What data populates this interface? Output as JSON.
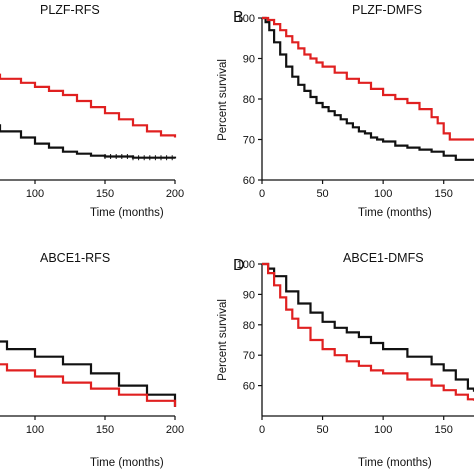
{
  "colors": {
    "black": "#111111",
    "red": "#e02020"
  },
  "chart_data": [
    {
      "panel": "A",
      "letter": "",
      "type": "line",
      "title": "PLZF-RFS",
      "xlabel": "Time (months)",
      "ylabel": "",
      "xticks": [
        100,
        150,
        200
      ],
      "yticks": [],
      "xlim": [
        0,
        200
      ],
      "ylim": [
        60,
        100
      ],
      "series": [
        {
          "color": "#111111",
          "censored_tail": true,
          "points": [
            [
              0,
              82
            ],
            [
              15,
              80
            ],
            [
              30,
              77
            ],
            [
              45,
              75
            ],
            [
              60,
              73.5
            ],
            [
              75,
              72
            ],
            [
              90,
              70.5
            ],
            [
              100,
              69
            ],
            [
              110,
              68
            ],
            [
              120,
              67
            ],
            [
              130,
              66.5
            ],
            [
              140,
              66
            ],
            [
              150,
              65.8
            ],
            [
              170,
              65.5
            ],
            [
              200,
              65.3
            ]
          ]
        },
        {
          "color": "#e02020",
          "censored_tail": false,
          "points": [
            [
              0,
              92
            ],
            [
              15,
              90
            ],
            [
              30,
              88.5
            ],
            [
              45,
              87
            ],
            [
              60,
              86
            ],
            [
              75,
              85
            ],
            [
              90,
              84
            ],
            [
              100,
              83
            ],
            [
              110,
              82
            ],
            [
              120,
              81
            ],
            [
              130,
              79.5
            ],
            [
              140,
              78
            ],
            [
              150,
              76.5
            ],
            [
              160,
              75
            ],
            [
              170,
              73.5
            ],
            [
              180,
              72
            ],
            [
              190,
              71
            ],
            [
              200,
              70.5
            ]
          ]
        }
      ]
    },
    {
      "panel": "B",
      "letter": "B",
      "type": "line",
      "title": "PLZF-DMFS",
      "xlabel": "Time (months)",
      "ylabel": "Percent survival",
      "xticks": [
        0,
        50,
        100,
        150
      ],
      "yticks": [
        60,
        70,
        80,
        90,
        100
      ],
      "xlim": [
        0,
        175
      ],
      "ylim": [
        60,
        100
      ],
      "series": [
        {
          "color": "#111111",
          "censored_tail": false,
          "points": [
            [
              0,
              100
            ],
            [
              3,
              99
            ],
            [
              6,
              97
            ],
            [
              10,
              94
            ],
            [
              15,
              91
            ],
            [
              20,
              88
            ],
            [
              25,
              85.5
            ],
            [
              30,
              83.5
            ],
            [
              35,
              82
            ],
            [
              40,
              80.5
            ],
            [
              45,
              79
            ],
            [
              50,
              78
            ],
            [
              55,
              77
            ],
            [
              60,
              76
            ],
            [
              65,
              75
            ],
            [
              70,
              74
            ],
            [
              75,
              73
            ],
            [
              80,
              72
            ],
            [
              85,
              71.5
            ],
            [
              90,
              70.5
            ],
            [
              95,
              70
            ],
            [
              100,
              69.5
            ],
            [
              110,
              68.5
            ],
            [
              120,
              68
            ],
            [
              130,
              67.5
            ],
            [
              140,
              67
            ],
            [
              150,
              66
            ],
            [
              160,
              65
            ],
            [
              175,
              65
            ]
          ]
        },
        {
          "color": "#e02020",
          "censored_tail": false,
          "points": [
            [
              0,
              100
            ],
            [
              5,
              99.5
            ],
            [
              10,
              98.5
            ],
            [
              15,
              97
            ],
            [
              20,
              95.5
            ],
            [
              25,
              94
            ],
            [
              30,
              92.5
            ],
            [
              35,
              91
            ],
            [
              40,
              90
            ],
            [
              45,
              89
            ],
            [
              50,
              88
            ],
            [
              60,
              86.5
            ],
            [
              70,
              85
            ],
            [
              80,
              84
            ],
            [
              90,
              82.5
            ],
            [
              100,
              81
            ],
            [
              110,
              80
            ],
            [
              120,
              79
            ],
            [
              130,
              77.5
            ],
            [
              140,
              75.5
            ],
            [
              145,
              74
            ],
            [
              150,
              71.5
            ],
            [
              155,
              70
            ],
            [
              175,
              70
            ]
          ]
        }
      ]
    },
    {
      "panel": "C",
      "letter": "",
      "type": "line",
      "title": "ABCE1-RFS",
      "xlabel": "Time (months)",
      "ylabel": "",
      "xticks": [
        100,
        150,
        200
      ],
      "yticks": [],
      "xlim": [
        0,
        200
      ],
      "ylim": [
        50,
        100
      ],
      "series": [
        {
          "color": "#111111",
          "censored_tail": false,
          "points": [
            [
              0,
              83
            ],
            [
              20,
              80
            ],
            [
              40,
              77
            ],
            [
              60,
              74.5
            ],
            [
              80,
              72
            ],
            [
              100,
              69.5
            ],
            [
              120,
              67
            ],
            [
              140,
              64
            ],
            [
              160,
              60
            ],
            [
              180,
              57
            ],
            [
              200,
              53
            ]
          ]
        },
        {
          "color": "#e02020",
          "censored_tail": false,
          "points": [
            [
              0,
              77
            ],
            [
              10,
              74
            ],
            [
              20,
              72
            ],
            [
              40,
              69.5
            ],
            [
              60,
              67
            ],
            [
              80,
              65
            ],
            [
              100,
              63
            ],
            [
              120,
              61
            ],
            [
              140,
              59
            ],
            [
              160,
              57
            ],
            [
              180,
              55
            ],
            [
              200,
              53
            ]
          ]
        }
      ]
    },
    {
      "panel": "D",
      "letter": "D",
      "type": "line",
      "title": "ABCE1-DMFS",
      "xlabel": "Time (months)",
      "ylabel": "Percent survival",
      "xticks": [
        0,
        50,
        100,
        150
      ],
      "yticks": [
        60,
        70,
        80,
        90,
        100
      ],
      "xlim": [
        0,
        175
      ],
      "ylim": [
        50,
        100
      ],
      "series": [
        {
          "color": "#111111",
          "censored_tail": false,
          "points": [
            [
              0,
              100
            ],
            [
              5,
              98.5
            ],
            [
              10,
              96
            ],
            [
              20,
              91
            ],
            [
              30,
              87
            ],
            [
              40,
              84
            ],
            [
              50,
              81
            ],
            [
              60,
              79
            ],
            [
              70,
              77.5
            ],
            [
              80,
              76
            ],
            [
              90,
              74
            ],
            [
              100,
              72
            ],
            [
              120,
              69.5
            ],
            [
              140,
              67
            ],
            [
              150,
              65
            ],
            [
              160,
              62
            ],
            [
              170,
              59
            ],
            [
              175,
              58
            ]
          ]
        },
        {
          "color": "#e02020",
          "censored_tail": false,
          "points": [
            [
              0,
              100
            ],
            [
              5,
              97
            ],
            [
              10,
              93
            ],
            [
              15,
              89
            ],
            [
              20,
              85
            ],
            [
              25,
              82
            ],
            [
              30,
              79
            ],
            [
              40,
              75
            ],
            [
              50,
              72
            ],
            [
              60,
              70
            ],
            [
              70,
              68
            ],
            [
              80,
              66.5
            ],
            [
              90,
              65
            ],
            [
              100,
              64
            ],
            [
              120,
              62
            ],
            [
              140,
              60
            ],
            [
              150,
              58.5
            ],
            [
              160,
              57
            ],
            [
              170,
              55.5
            ],
            [
              175,
              55
            ]
          ]
        }
      ]
    }
  ]
}
